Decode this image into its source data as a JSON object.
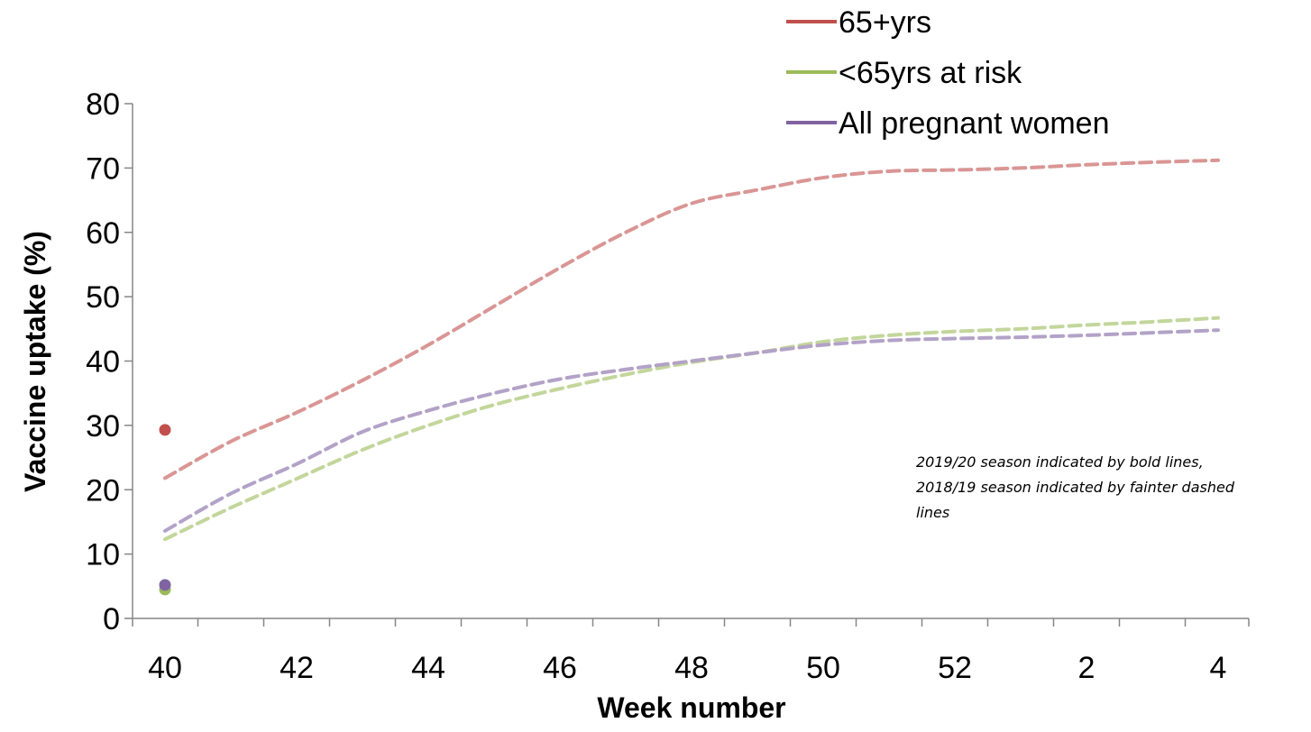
{
  "chart_data": {
    "type": "line",
    "xlabel": "Week number",
    "ylabel": "Vaccine uptake (%)",
    "ylim": [
      0,
      80
    ],
    "yticks": [
      0,
      10,
      20,
      30,
      40,
      50,
      60,
      70,
      80
    ],
    "x_week_sequence": [
      40,
      41,
      42,
      43,
      44,
      45,
      46,
      47,
      48,
      49,
      50,
      51,
      52,
      1,
      2,
      3,
      4
    ],
    "xtick_labels": [
      "40",
      "42",
      "44",
      "46",
      "48",
      "50",
      "52",
      "2",
      "4"
    ],
    "legend": {
      "position": "top-right"
    },
    "annotation": [
      "2019/20 season indicated by bold lines,",
      "2018/19 season indicated by fainter dashed",
      "lines"
    ],
    "series": [
      {
        "name": "65+yrs",
        "color": "#c0504d",
        "faded_color": "#d99694",
        "season_2019_20": [
          {
            "week": 40,
            "value": 29.3
          }
        ],
        "season_2018_19": [
          21.8,
          27.5,
          32.0,
          37.0,
          42.5,
          48.5,
          54.5,
          60.0,
          64.5,
          66.6,
          68.5,
          69.5,
          69.7,
          70.0,
          70.5,
          70.9,
          71.2
        ]
      },
      {
        "name": "<65yrs at risk",
        "color": "#9bbb59",
        "faded_color": "#c3d69b",
        "season_2019_20": [
          {
            "week": 40,
            "value": 4.5
          }
        ],
        "season_2018_19": [
          12.3,
          17.2,
          21.7,
          26.2,
          30.0,
          33.2,
          35.7,
          37.9,
          39.8,
          41.3,
          43.0,
          44.0,
          44.6,
          45.0,
          45.6,
          46.1,
          46.7
        ]
      },
      {
        "name": "All pregnant women",
        "color": "#8064a2",
        "faded_color": "#b3a2c7",
        "season_2019_20": [
          {
            "week": 40,
            "value": 5.2
          }
        ],
        "season_2018_19": [
          13.6,
          19.4,
          24.0,
          29.0,
          32.3,
          35.0,
          37.2,
          38.7,
          40.0,
          41.3,
          42.5,
          43.2,
          43.5,
          43.7,
          44.0,
          44.4,
          44.8
        ]
      }
    ]
  }
}
